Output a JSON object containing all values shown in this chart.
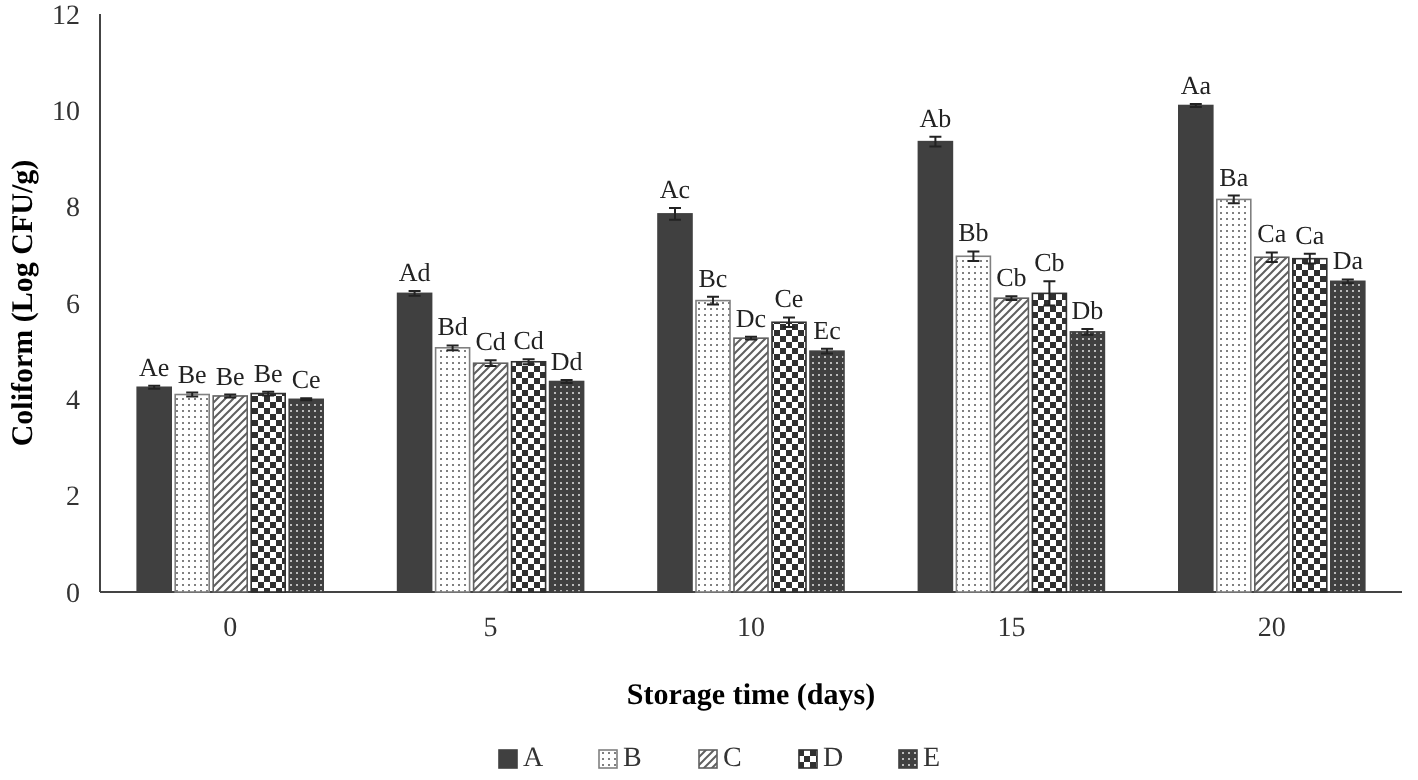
{
  "chart_data": {
    "type": "bar",
    "xlabel": "Storage time (days)",
    "ylabel": "Coliform (Log CFU/g)",
    "categories": [
      "0",
      "5",
      "10",
      "15",
      "20"
    ],
    "ylim": [
      0,
      12
    ],
    "yticks": [
      0,
      2,
      4,
      6,
      8,
      10,
      12
    ],
    "grid": false,
    "legend": "bottom",
    "series": [
      {
        "name": "A",
        "color": "#404040",
        "values": [
          4.25,
          6.2,
          7.85,
          9.35,
          10.1
        ],
        "errors": [
          0.03,
          0.05,
          0.12,
          0.1,
          0.03
        ],
        "value_labels": [
          "Ae",
          "Ad",
          "Ac",
          "Ab",
          "Aa"
        ]
      },
      {
        "name": "B",
        "color": "#808080",
        "values": [
          4.1,
          5.07,
          6.05,
          6.97,
          8.15
        ],
        "errors": [
          0.04,
          0.05,
          0.08,
          0.1,
          0.08
        ],
        "value_labels": [
          "Be",
          "Bd",
          "Bc",
          "Bb",
          "Ba"
        ]
      },
      {
        "name": "C",
        "color": "#606060",
        "values": [
          4.07,
          4.75,
          5.27,
          6.1,
          6.95
        ],
        "errors": [
          0.03,
          0.06,
          0.03,
          0.04,
          0.1
        ],
        "value_labels": [
          "Be",
          "Cd",
          "Dc",
          "Cb",
          "Ca"
        ]
      },
      {
        "name": "D",
        "color": "#303030",
        "values": [
          4.12,
          4.78,
          5.6,
          6.2,
          6.92
        ],
        "errors": [
          0.04,
          0.05,
          0.1,
          0.25,
          0.1
        ],
        "value_labels": [
          "Be",
          "Cd",
          "Ce",
          "Cb",
          "Ca"
        ]
      },
      {
        "name": "E",
        "color": "#404040",
        "values": [
          4.0,
          4.37,
          5.0,
          5.4,
          6.45
        ],
        "errors": [
          0.02,
          0.03,
          0.05,
          0.06,
          0.04
        ],
        "value_labels": [
          "Ce",
          "Dd",
          "Ec",
          "Db",
          "Da"
        ]
      }
    ]
  }
}
